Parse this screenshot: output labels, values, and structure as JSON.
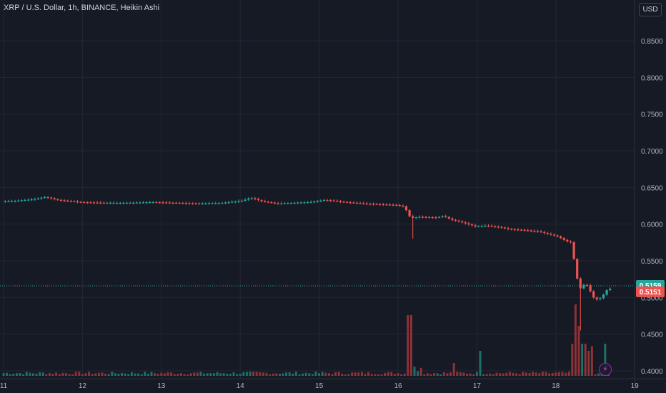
{
  "header": {
    "title": "XRP / U.S. Dollar, 1h, BINANCE, Heikin Ashi",
    "currency_button": "USD"
  },
  "colors": {
    "background": "#161a25",
    "grid": "#232733",
    "up": "#26a69a",
    "down": "#ef5350",
    "up_volume": "#1e6f68",
    "down_volume": "#8c3337",
    "axis_text": "#b2b5be",
    "price_line": "#26a69a"
  },
  "icons": {
    "lightning": "lightning-icon"
  },
  "chart_data": {
    "type": "candlestick",
    "chart_style": "Heikin Ashi",
    "symbol": "XRP / U.S. Dollar",
    "interval": "1h",
    "exchange": "BINANCE",
    "currency": "USD",
    "x_ticks": [
      "11",
      "12",
      "13",
      "14",
      "15",
      "16",
      "17",
      "18",
      "19"
    ],
    "y_ticks": [
      "0.8500",
      "0.8000",
      "0.7500",
      "0.7000",
      "0.6500",
      "0.6000",
      "0.5500",
      "0.5000",
      "0.4500",
      "0.4000"
    ],
    "y_range": [
      0.393,
      0.886
    ],
    "grid": true,
    "last_price_label": "0.5159",
    "last_price_value": 0.5159,
    "previous_close_label": "0.5151",
    "previous_close_value": 0.5151,
    "price_path": [
      [
        11.0,
        0.631
      ],
      [
        11.2,
        0.632
      ],
      [
        11.4,
        0.634
      ],
      [
        11.55,
        0.637
      ],
      [
        11.7,
        0.633
      ],
      [
        11.9,
        0.631
      ],
      [
        12.0,
        0.63
      ],
      [
        12.3,
        0.629
      ],
      [
        12.6,
        0.629
      ],
      [
        12.9,
        0.63
      ],
      [
        13.2,
        0.629
      ],
      [
        13.5,
        0.628
      ],
      [
        13.8,
        0.629
      ],
      [
        14.05,
        0.632
      ],
      [
        14.15,
        0.636
      ],
      [
        14.3,
        0.631
      ],
      [
        14.5,
        0.628
      ],
      [
        14.7,
        0.629
      ],
      [
        14.9,
        0.63
      ],
      [
        15.1,
        0.633
      ],
      [
        15.35,
        0.63
      ],
      [
        15.6,
        0.628
      ],
      [
        15.8,
        0.627
      ],
      [
        16.0,
        0.626
      ],
      [
        16.1,
        0.624
      ],
      [
        16.18,
        0.608
      ],
      [
        16.3,
        0.61
      ],
      [
        16.5,
        0.609
      ],
      [
        16.6,
        0.611
      ],
      [
        16.7,
        0.606
      ],
      [
        16.85,
        0.602
      ],
      [
        17.0,
        0.597
      ],
      [
        17.15,
        0.598
      ],
      [
        17.3,
        0.596
      ],
      [
        17.45,
        0.593
      ],
      [
        17.6,
        0.592
      ],
      [
        17.8,
        0.59
      ],
      [
        17.95,
        0.586
      ],
      [
        18.05,
        0.583
      ],
      [
        18.15,
        0.577
      ],
      [
        18.22,
        0.575
      ],
      [
        18.28,
        0.53
      ],
      [
        18.33,
        0.512
      ],
      [
        18.4,
        0.52
      ],
      [
        18.5,
        0.5
      ],
      [
        18.55,
        0.497
      ],
      [
        18.6,
        0.5
      ],
      [
        18.68,
        0.512
      ]
    ],
    "volume": [
      [
        16.15,
        0.85
      ],
      [
        18.25,
        1.0
      ],
      [
        18.3,
        0.7
      ],
      [
        18.35,
        0.45
      ],
      [
        18.42,
        0.35
      ],
      [
        17.05,
        0.35
      ],
      [
        16.7,
        0.18
      ],
      [
        18.62,
        0.45
      ]
    ]
  }
}
